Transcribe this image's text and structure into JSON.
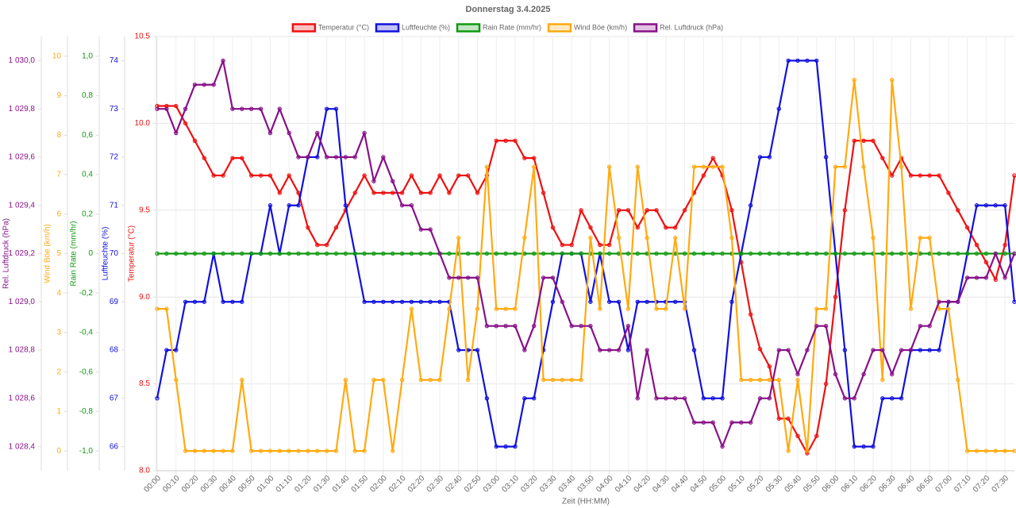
{
  "chart_data": {
    "type": "line",
    "title": "Donnerstag 3.4.2025",
    "xlabel": "Zeit (HH:MM)",
    "categories": [
      "00:00",
      null,
      "00:10",
      null,
      "00:20",
      null,
      "00:30",
      null,
      "00:40",
      null,
      "00:50",
      null,
      "01:00",
      null,
      "01:10",
      null,
      "01:20",
      null,
      "01:30",
      null,
      "01:40",
      null,
      "01:50",
      null,
      "02:00",
      null,
      "02:10",
      null,
      "02:20",
      null,
      "02:30",
      null,
      "02:40",
      null,
      "02:50",
      null,
      "03:00",
      null,
      "03:10",
      null,
      "03:20",
      null,
      "03:30",
      null,
      "03:40",
      null,
      "03:50",
      null,
      "04:00",
      null,
      "04:10",
      null,
      "04:20",
      null,
      "04:30",
      null,
      "04:40",
      null,
      "04:50",
      null,
      "05:00",
      null,
      "05:10",
      null,
      "05:20",
      null,
      "05:30",
      null,
      "05:40",
      null,
      "05:50",
      null,
      "06:00",
      null,
      "06:10",
      null,
      "06:20",
      null,
      "06:30",
      null,
      "06:40",
      null,
      "06:50",
      null,
      "07:00",
      null,
      "07:10",
      null,
      "07:20",
      null,
      "07:30",
      null
    ],
    "grid": true,
    "series": [
      {
        "name": "Temperatur (°C)",
        "color": "#ee1111",
        "ylabel": "Temperatur (°C)",
        "ylim": [
          8,
          10.5
        ],
        "yticks": [
          {
            "value": 8,
            "label": "8.0"
          },
          {
            "value": 8.5,
            "label": "8.5"
          },
          {
            "value": 9,
            "label": "9.0"
          },
          {
            "value": 9.5,
            "label": "9.5"
          },
          {
            "value": 10,
            "label": "10.0"
          },
          {
            "value": 10.5,
            "label": "10.5"
          }
        ],
        "values": [
          10.1,
          10.1,
          10.1,
          10.0,
          9.9,
          9.8,
          9.7,
          9.7,
          9.8,
          9.8,
          9.7,
          9.7,
          9.7,
          9.6,
          9.7,
          9.6,
          9.4,
          9.3,
          9.3,
          9.4,
          9.5,
          9.6,
          9.7,
          9.6,
          9.6,
          9.6,
          9.6,
          9.7,
          9.6,
          9.6,
          9.7,
          9.6,
          9.7,
          9.7,
          9.6,
          9.7,
          9.9,
          9.9,
          9.9,
          9.8,
          9.8,
          9.6,
          9.4,
          9.3,
          9.3,
          9.5,
          9.4,
          9.3,
          9.3,
          9.5,
          9.5,
          9.4,
          9.5,
          9.5,
          9.4,
          9.4,
          9.5,
          9.6,
          9.7,
          9.8,
          9.7,
          9.5,
          9.2,
          8.9,
          8.7,
          8.6,
          8.3,
          8.3,
          8.2,
          8.1,
          8.2,
          8.5,
          9.0,
          9.5,
          9.9,
          9.9,
          9.9,
          9.8,
          9.7,
          9.8,
          9.7,
          9.7,
          9.7,
          9.7,
          9.6,
          9.5,
          9.4,
          9.3,
          9.2,
          9.1,
          9.3,
          9.7
        ]
      },
      {
        "name": "Luftfeuchte (%)",
        "color": "#1111dd",
        "ylabel": "Luftfeuchte (%)",
        "ylim": [
          65.5,
          74.5
        ],
        "yticks": [
          66,
          67,
          68,
          69,
          70,
          71,
          72,
          73,
          74
        ],
        "values": [
          67,
          68,
          68,
          69,
          69,
          69,
          70,
          69,
          69,
          69,
          70,
          70,
          71,
          70,
          71,
          71,
          72,
          72,
          73,
          73,
          71,
          70,
          69,
          69,
          69,
          69,
          69,
          69,
          69,
          69,
          69,
          69,
          68,
          68,
          68,
          67,
          66,
          66,
          66,
          67,
          67,
          68,
          69,
          70,
          70,
          70,
          69,
          70,
          69,
          69,
          68,
          69,
          69,
          69,
          69,
          69,
          69,
          68,
          67,
          67,
          67,
          69,
          70,
          71,
          72,
          72,
          73,
          74,
          74,
          74,
          74,
          72,
          70,
          68,
          66,
          66,
          66,
          67,
          67,
          67,
          68,
          68,
          68,
          68,
          69,
          69,
          70,
          71,
          71,
          71,
          71,
          69
        ]
      },
      {
        "name": "Rain Rate (mm/hr)",
        "color": "#119911",
        "ylabel": "Rain Rate (mm/hr)",
        "ylim": [
          -1.1,
          1.1
        ],
        "yticks": [
          {
            "value": -1,
            "label": "-1,0"
          },
          {
            "value": -0.8,
            "label": "-0,8"
          },
          {
            "value": -0.6,
            "label": "-0,6"
          },
          {
            "value": -0.4,
            "label": "-0,4"
          },
          {
            "value": -0.2,
            "label": "-0,2"
          },
          0,
          {
            "value": 0.2,
            "label": "0,2"
          },
          {
            "value": 0.4,
            "label": "0,4"
          },
          {
            "value": 0.6,
            "label": "0,6"
          },
          {
            "value": 0.8,
            "label": "0,8"
          },
          {
            "value": 1,
            "label": "1,0"
          }
        ],
        "values": [
          0,
          0,
          0,
          0,
          0,
          0,
          0,
          0,
          0,
          0,
          0,
          0,
          0,
          0,
          0,
          0,
          0,
          0,
          0,
          0,
          0,
          0,
          0,
          0,
          0,
          0,
          0,
          0,
          0,
          0,
          0,
          0,
          0,
          0,
          0,
          0,
          0,
          0,
          0,
          0,
          0,
          0,
          0,
          0,
          0,
          0,
          0,
          0,
          0,
          0,
          0,
          0,
          0,
          0,
          0,
          0,
          0,
          0,
          0,
          0,
          0,
          0,
          0,
          0,
          0,
          0,
          0,
          0,
          0,
          0,
          0,
          0,
          0,
          0,
          0,
          0,
          0,
          0,
          0,
          0,
          0,
          0,
          0,
          0,
          0,
          0,
          0,
          0,
          0,
          0,
          0,
          0
        ]
      },
      {
        "name": "Wind Böe (km/h)",
        "color": "#ffaa11",
        "ylabel": "Wind Böe (km/h)",
        "ylim": [
          -0.5,
          10.5
        ],
        "yticks": [
          0,
          1,
          2,
          3,
          4,
          5,
          6,
          7,
          8,
          9,
          10
        ],
        "values": [
          3.6,
          3.6,
          1.8,
          0,
          0,
          0,
          0,
          0,
          0,
          1.8,
          0,
          0,
          0,
          0,
          0,
          0,
          0,
          0,
          0,
          0,
          1.8,
          0,
          0,
          1.8,
          1.8,
          0,
          1.8,
          3.6,
          1.8,
          1.8,
          1.8,
          3.6,
          5.4,
          1.8,
          3.6,
          7.2,
          3.6,
          3.6,
          3.6,
          5.4,
          7.2,
          1.8,
          1.8,
          1.8,
          1.8,
          1.8,
          5.4,
          3.6,
          7.2,
          5.4,
          3.6,
          7.2,
          5.4,
          3.6,
          3.6,
          5.4,
          3.6,
          7.2,
          7.2,
          7.2,
          7.2,
          5.4,
          1.8,
          1.8,
          1.8,
          1.8,
          1.8,
          0,
          1.8,
          0,
          3.6,
          3.6,
          7.2,
          7.2,
          9.4,
          7.2,
          5.4,
          1.8,
          9.4,
          7.2,
          3.6,
          5.4,
          5.4,
          3.6,
          3.6,
          1.8,
          0,
          0,
          0,
          0,
          0,
          0
        ]
      },
      {
        "name": "Rel. Luftdruck (hPa)",
        "color": "#881188",
        "ylabel": "Rel. Luftdruck (hPa)",
        "ylim": [
          1028.3,
          1030.1
        ],
        "yticks": [
          {
            "value": 1028.4,
            "label": "1 028,4"
          },
          {
            "value": 1028.6,
            "label": "1 028,6"
          },
          {
            "value": 1028.8,
            "label": "1 028,8"
          },
          {
            "value": 1029,
            "label": "1 029,0"
          },
          {
            "value": 1029.2,
            "label": "1 029,2"
          },
          {
            "value": 1029.4,
            "label": "1 029,4"
          },
          {
            "value": 1029.6,
            "label": "1 029,6"
          },
          {
            "value": 1029.8,
            "label": "1 029,8"
          },
          {
            "value": 1030,
            "label": "1 030,0"
          }
        ],
        "values": [
          1029.8,
          1029.8,
          1029.7,
          1029.8,
          1029.9,
          1029.9,
          1029.9,
          1030.0,
          1029.8,
          1029.8,
          1029.8,
          1029.8,
          1029.7,
          1029.8,
          1029.7,
          1029.6,
          1029.6,
          1029.7,
          1029.6,
          1029.6,
          1029.6,
          1029.6,
          1029.7,
          1029.5,
          1029.6,
          1029.5,
          1029.4,
          1029.4,
          1029.3,
          1029.3,
          1029.2,
          1029.1,
          1029.1,
          1029.1,
          1029.1,
          1028.9,
          1028.9,
          1028.9,
          1028.9,
          1028.8,
          1028.9,
          1029.1,
          1029.1,
          1029.0,
          1028.9,
          1028.9,
          1028.9,
          1028.8,
          1028.8,
          1028.8,
          1028.9,
          1028.6,
          1028.8,
          1028.6,
          1028.6,
          1028.6,
          1028.6,
          1028.5,
          1028.5,
          1028.5,
          1028.4,
          1028.5,
          1028.5,
          1028.5,
          1028.6,
          1028.6,
          1028.8,
          1028.8,
          1028.7,
          1028.8,
          1028.9,
          1028.9,
          1028.7,
          1028.6,
          1028.6,
          1028.7,
          1028.8,
          1028.8,
          1028.7,
          1028.8,
          1028.8,
          1028.9,
          1028.9,
          1029.0,
          1029.0,
          1029.0,
          1029.1,
          1029.1,
          1029.1,
          1029.2,
          1029.1,
          1029.2
        ]
      }
    ]
  }
}
